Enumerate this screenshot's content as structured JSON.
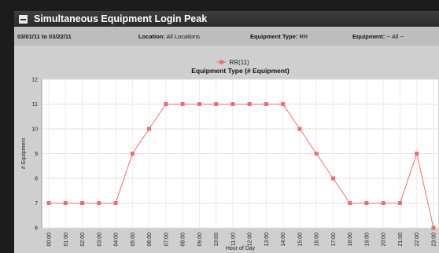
{
  "panel": {
    "title": "Simultaneous Equipment Login Peak"
  },
  "filters": {
    "date_range": "03/01/11 to 03/22/11",
    "location_label": "Location:",
    "location_value": "All Locations",
    "equipment_type_label": "Equipment Type:",
    "equipment_type_value": "RR",
    "equipment_label": "Equipment:",
    "equipment_value": "-- All --"
  },
  "colors": {
    "series": "#f26b6b",
    "header_bg": "#2f2f2f",
    "panel_bg": "#bdbdbd",
    "plot_bg": "#ffffff"
  },
  "chart_data": {
    "type": "line",
    "title": "Equipment Type (# Equipment)",
    "xlabel": "Hour of Day",
    "ylabel": "# Equipment",
    "ylim": [
      6,
      12
    ],
    "yticks": [
      6,
      7,
      8,
      9,
      10,
      11,
      12
    ],
    "grid": true,
    "legend_position": "top-center",
    "categories": [
      "00:00",
      "01:00",
      "02:00",
      "03:00",
      "04:00",
      "05:00",
      "06:00",
      "07:00",
      "08:00",
      "09:00",
      "10:00",
      "11:00",
      "12:00",
      "13:00",
      "14:00",
      "15:00",
      "16:00",
      "17:00",
      "18:00",
      "19:00",
      "20:00",
      "21:00",
      "22:00",
      "23:00"
    ],
    "series": [
      {
        "name": "RR(11)",
        "values": [
          7,
          7,
          7,
          7,
          7,
          9,
          10,
          11,
          11,
          11,
          11,
          11,
          11,
          11,
          11,
          10,
          9,
          8,
          7,
          7,
          7,
          7,
          9,
          6
        ]
      }
    ]
  }
}
